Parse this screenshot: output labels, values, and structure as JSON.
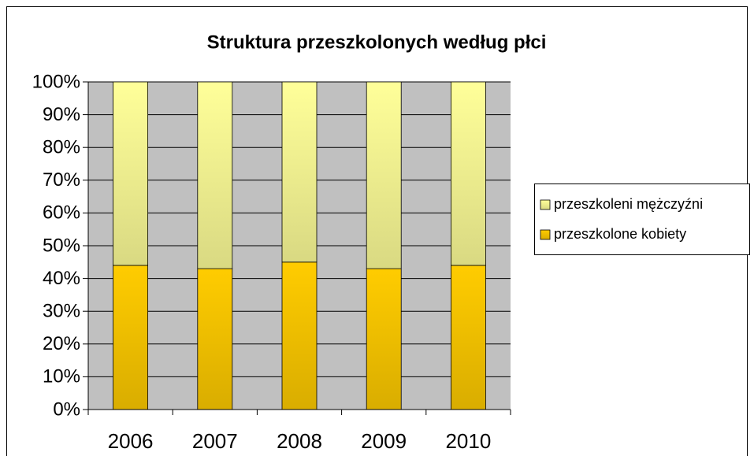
{
  "chart_data": {
    "type": "stacked_bar",
    "title": "Struktura przeszkolonych według płci",
    "categories": [
      "2006",
      "2007",
      "2008",
      "2009",
      "2010"
    ],
    "series": [
      {
        "name": "przeszkolone kobiety",
        "color": "#ffcc00",
        "values": [
          44,
          43,
          45,
          43,
          44
        ]
      },
      {
        "name": "przeszkoleni mężczyźni",
        "color": "#ffff99",
        "values": [
          56,
          57,
          55,
          57,
          56
        ]
      }
    ],
    "ylim": [
      0,
      100
    ],
    "yticks": [
      {
        "value": 0,
        "label": "0%"
      },
      {
        "value": 10,
        "label": "10%"
      },
      {
        "value": 20,
        "label": "20%"
      },
      {
        "value": 30,
        "label": "30%"
      },
      {
        "value": 40,
        "label": "40%"
      },
      {
        "value": 50,
        "label": "50%"
      },
      {
        "value": 60,
        "label": "60%"
      },
      {
        "value": 70,
        "label": "70%"
      },
      {
        "value": 80,
        "label": "80%"
      },
      {
        "value": 90,
        "label": "90%"
      },
      {
        "value": 100,
        "label": "100%"
      }
    ],
    "grid": true,
    "legend": "right"
  }
}
